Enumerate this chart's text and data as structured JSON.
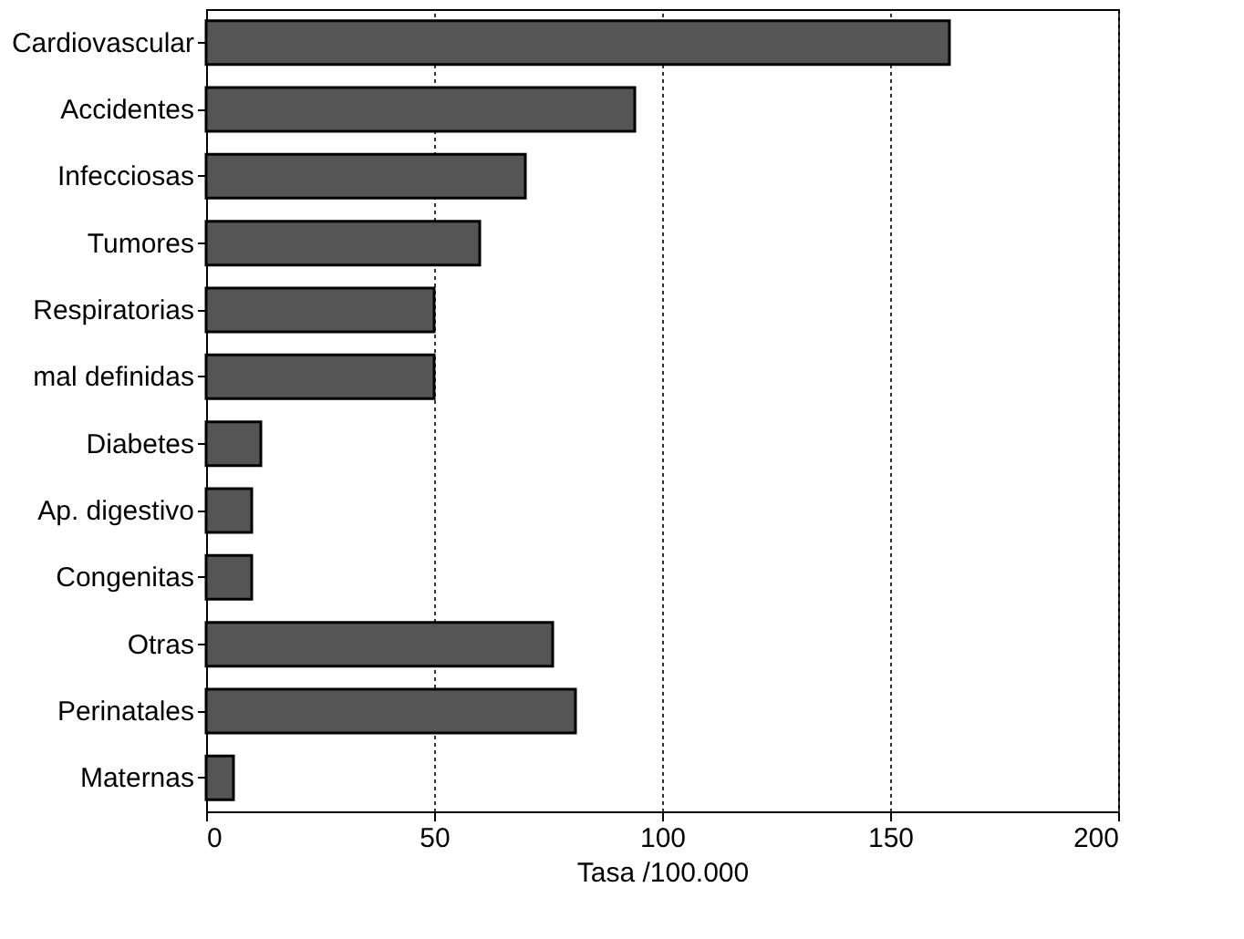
{
  "chart_data": {
    "type": "bar",
    "orientation": "horizontal",
    "xlabel": "Tasa /100.000",
    "categories": [
      "Cardiovascular",
      "Accidentes",
      "Infecciosas",
      "Tumores",
      "Respiratorias",
      "mal definidas",
      "Diabetes",
      "Ap. digestivo",
      "Congenitas",
      "Otras",
      "Perinatales",
      "Maternas"
    ],
    "values": [
      163,
      94,
      70,
      60,
      50,
      50,
      12,
      10,
      10,
      76,
      81,
      6
    ],
    "color": "#555555",
    "xlim": [
      0,
      200
    ],
    "xticks": [
      0,
      50,
      100,
      150,
      200
    ],
    "grid": "x"
  }
}
